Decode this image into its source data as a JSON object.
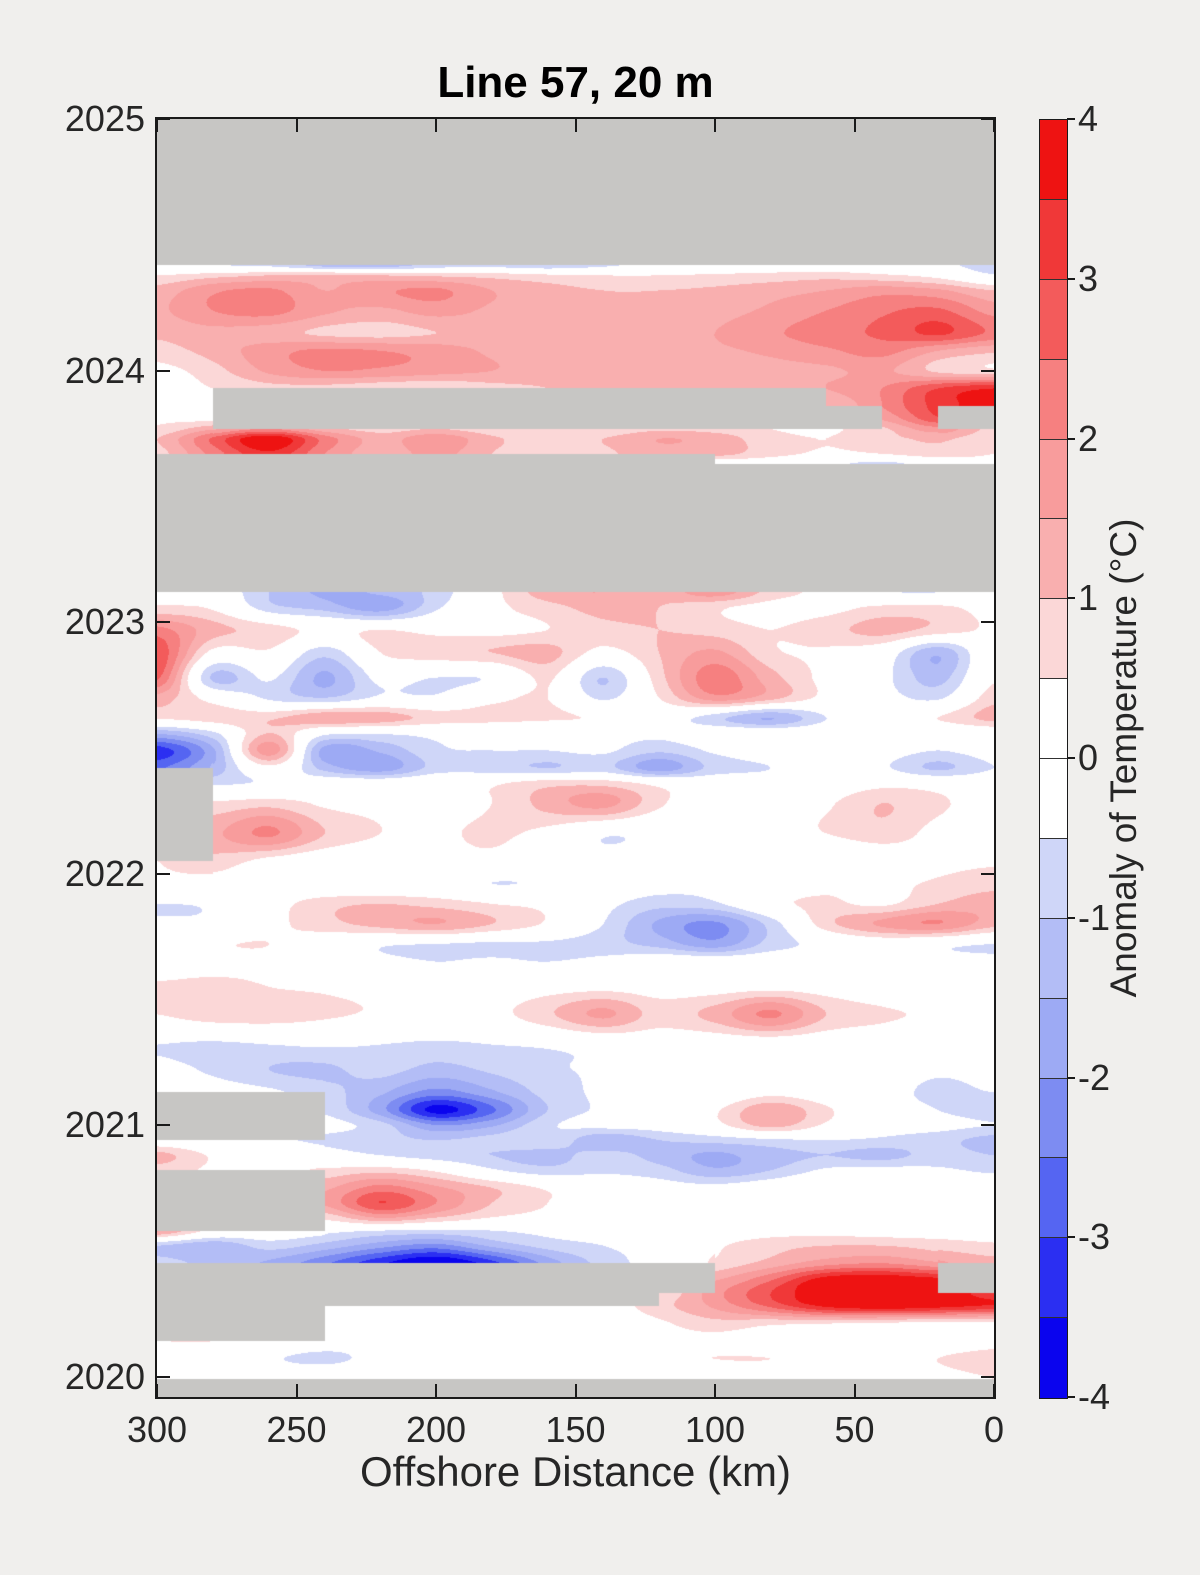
{
  "figure": {
    "background": "#F0EFED",
    "axis_color": "#1a1a1a",
    "text_color": "#262626"
  },
  "chart_data": {
    "type": "heatmap",
    "title": "Line 57, 20 m",
    "xlabel": "Offshore Distance (km)",
    "colorbar_label": "Anomaly of Temperature (°C)",
    "units": "°C",
    "legend_position": "right-colorbar",
    "grid": "off",
    "xlim": [
      300,
      0
    ],
    "ylim": [
      2019.92,
      2025.0
    ],
    "x_ticks": [
      300,
      250,
      200,
      150,
      100,
      50,
      0
    ],
    "y_ticks": [
      2025,
      2024,
      2023,
      2022,
      2021,
      2020
    ],
    "colorbar_ticks": [
      4,
      3,
      2,
      1,
      0,
      -1,
      -2,
      -3,
      -4
    ],
    "levels": {
      "min": -4,
      "max": 4,
      "step": 0.5
    },
    "colormap": [
      "#0A04EE",
      "#2B2FF2",
      "#5565F2",
      "#7D8CF2",
      "#9DAAF4",
      "#B3BDF6",
      "#CFD6F8",
      "#FFFFFF",
      "#FFFFFF",
      "#FBD7D7",
      "#F9AFAF",
      "#F89C9C",
      "#F68080",
      "#F35B5B",
      "#F03838",
      "#EE1312"
    ],
    "missing_color": "#C7C6C4",
    "missing_value": null,
    "x_km": [
      300,
      280,
      260,
      240,
      220,
      200,
      180,
      160,
      140,
      120,
      100,
      80,
      60,
      40,
      20,
      0
    ],
    "times": [
      2019.9,
      2019.965,
      2019.99,
      2020.07,
      2020.14,
      2020.21,
      2020.28,
      2020.33,
      2020.38,
      2020.45,
      2020.52,
      2020.58,
      2020.64,
      2020.69,
      2020.75,
      2020.82,
      2020.88,
      2020.94,
      2021.0,
      2021.06,
      2021.13,
      2021.22,
      2021.32,
      2021.44,
      2021.55,
      2021.65,
      2021.72,
      2021.8,
      2021.88,
      2021.96,
      2022.05,
      2022.16,
      2022.28,
      2022.36,
      2022.42,
      2022.49,
      2022.56,
      2022.62,
      2022.7,
      2022.78,
      2022.88,
      2022.97,
      2023.06,
      2023.12,
      2023.2,
      2023.36,
      2023.52,
      2023.63,
      2023.67,
      2023.73,
      2023.77,
      2023.81,
      2023.86,
      2023.93,
      2024.0,
      2024.08,
      2024.15,
      2024.24,
      2024.32,
      2024.38,
      2024.42,
      2024.46,
      2024.72,
      2025.01
    ],
    "values": [
      [
        null,
        null,
        null,
        null,
        null,
        null,
        null,
        null,
        null,
        null,
        null,
        null,
        null,
        null,
        null,
        null
      ],
      [
        null,
        null,
        null,
        null,
        null,
        null,
        null,
        null,
        null,
        null,
        null,
        null,
        null,
        null,
        null,
        null
      ],
      [
        0,
        0,
        0.1,
        0.4,
        0.2,
        0,
        0,
        0,
        0,
        0,
        0.1,
        0.2,
        0.3,
        0.3,
        0.4,
        0.5
      ],
      [
        0,
        -0.1,
        -0.4,
        -0.7,
        -0.2,
        0,
        0,
        0.2,
        0.4,
        0.4,
        0.5,
        0.5,
        0.4,
        0.3,
        0.5,
        0.6
      ],
      [
        0.5,
        0.5,
        0.3,
        0,
        -0.1,
        0,
        0,
        0,
        0.2,
        0.3,
        0.3,
        0.2,
        0.2,
        0.2,
        0.3,
        0.4
      ],
      [
        null,
        null,
        null,
        0.2,
        0,
        0,
        0,
        0,
        0.1,
        0.4,
        0.8,
        0.6,
        0.5,
        0.4,
        0.3,
        0.3
      ],
      [
        null,
        null,
        null,
        0,
        0,
        0,
        0,
        0,
        0.2,
        0.8,
        1.6,
        2.6,
        3.6,
        3.9,
        3.7,
        3.4
      ],
      [
        null,
        null,
        null,
        null,
        null,
        null,
        null,
        null,
        null,
        0.6,
        1.8,
        3.0,
        4.0,
        4.2,
        4.0,
        3.2
      ],
      [
        null,
        null,
        null,
        null,
        null,
        null,
        null,
        null,
        null,
        null,
        1.5,
        2.5,
        3.9,
        4.1,
        3.8,
        null
      ],
      [
        -0.8,
        -1.2,
        -1.6,
        -2.4,
        -3.4,
        -4.1,
        -3.2,
        -1.8,
        -0.8,
        -0.2,
        0.6,
        1.2,
        1.8,
        2.0,
        1.6,
        1.2
      ],
      [
        -1.0,
        -1.4,
        -0.8,
        -1.2,
        -1.8,
        -2.2,
        -1.4,
        -0.8,
        -0.5,
        -0.2,
        0.4,
        0.8,
        1.0,
        1.0,
        0.8,
        0.6
      ],
      [
        1.6,
        0.3,
        0,
        -0.3,
        -0.5,
        -0.6,
        -0.5,
        -0.3,
        -0.2,
        0,
        0.2,
        0.3,
        0.3,
        0.2,
        0.2,
        0.2
      ],
      [
        null,
        null,
        null,
        0.8,
        1.8,
        1.2,
        0.6,
        0.3,
        0,
        0,
        0.2,
        0.3,
        0.2,
        0,
        0,
        0
      ],
      [
        null,
        null,
        null,
        1.6,
        3.0,
        2.0,
        1.0,
        0.5,
        0.2,
        0,
        0,
        0.2,
        0,
        0,
        0,
        0
      ],
      [
        null,
        null,
        null,
        1.4,
        2.2,
        1.6,
        1.0,
        0.4,
        0,
        -0.2,
        -0.3,
        0,
        0.3,
        0,
        0,
        0
      ],
      [
        0.8,
        0.4,
        0.3,
        0.6,
        0.8,
        0.4,
        -0.4,
        -0.8,
        -0.6,
        -0.8,
        -1.4,
        -1.0,
        -0.4,
        -0.3,
        -0.4,
        -0.6
      ],
      [
        1.2,
        0.4,
        0,
        -0.2,
        -0.5,
        -0.8,
        -1.0,
        -1.2,
        -0.8,
        -1.2,
        -1.6,
        -1.2,
        -1.0,
        -1.2,
        -0.8,
        -1.0
      ],
      [
        0,
        -0.2,
        -0.4,
        -0.6,
        -0.8,
        -1.0,
        -0.8,
        -0.6,
        -1.4,
        -1.0,
        -0.8,
        -0.6,
        -0.5,
        -0.6,
        -0.8,
        -1.2
      ],
      [
        null,
        null,
        null,
        -0.3,
        -0.8,
        -2.0,
        -1.6,
        -0.6,
        -0.3,
        -0.2,
        0.3,
        1.2,
        0.4,
        -0.2,
        -0.3,
        -0.5
      ],
      [
        null,
        null,
        null,
        -0.6,
        -1.8,
        -3.7,
        -2.6,
        -1.0,
        -0.4,
        -0.2,
        0.4,
        1.4,
        0.6,
        -0.2,
        -0.5,
        -0.8
      ],
      [
        0,
        -0.2,
        -0.4,
        -0.8,
        -1.4,
        -2.2,
        -1.6,
        -0.8,
        -0.4,
        -0.3,
        -0.2,
        0.3,
        0,
        -0.3,
        -0.6,
        -0.5
      ],
      [
        -0.3,
        -0.6,
        -1.0,
        -1.1,
        -0.8,
        -1.2,
        -0.9,
        -0.6,
        -0.4,
        -0.3,
        -0.2,
        0,
        0,
        -0.2,
        -0.4,
        -0.3
      ],
      [
        -0.5,
        -0.6,
        -0.5,
        -0.4,
        -0.5,
        -0.6,
        -0.5,
        -0.4,
        -0.2,
        0,
        0,
        0,
        0,
        0,
        0,
        0
      ],
      [
        0.5,
        0.8,
        0.8,
        0.6,
        0.4,
        0.2,
        0.3,
        0.9,
        1.6,
        0.8,
        1.2,
        2.1,
        1.0,
        0.6,
        0.4,
        0.2
      ],
      [
        0.6,
        0.7,
        0.5,
        0.4,
        0.2,
        0,
        0,
        0.2,
        0.3,
        0.2,
        0.2,
        0.3,
        0.2,
        0,
        0,
        0
      ],
      [
        0,
        0.2,
        0.3,
        0,
        -0.3,
        -0.5,
        -0.4,
        -0.5,
        -0.3,
        0,
        0,
        0,
        0,
        0,
        -0.2,
        -0.3
      ],
      [
        0,
        0.4,
        0.5,
        0,
        -0.4,
        -0.5,
        -0.6,
        -0.6,
        -0.8,
        -1.2,
        -1.8,
        -0.8,
        -0.3,
        0,
        -0.3,
        -0.5
      ],
      [
        -0.4,
        -0.3,
        0.3,
        0.8,
        1.2,
        1.5,
        1.0,
        0.4,
        -0.5,
        -1.6,
        -2.1,
        -0.8,
        0.8,
        1.6,
        2.0,
        1.2
      ],
      [
        -0.5,
        -0.4,
        0.2,
        0.8,
        1.0,
        0.8,
        0.5,
        0.3,
        -0.3,
        -0.8,
        -0.6,
        0.3,
        0.6,
        0.4,
        1.0,
        1.3
      ],
      [
        0.3,
        0.2,
        0,
        -0.2,
        -0.3,
        -0.2,
        -0.5,
        -0.4,
        0,
        -0.2,
        -0.3,
        0,
        0.3,
        0.3,
        0.6,
        0.8
      ],
      [
        0.5,
        0.8,
        0.3,
        0,
        0,
        0.2,
        0.3,
        0,
        -0.2,
        0,
        0,
        -0.3,
        -0.4,
        0,
        0.3,
        0.4
      ],
      [
        null,
        1.4,
        2.1,
        1.0,
        0.5,
        0.4,
        0.6,
        0.3,
        -0.4,
        -0.3,
        0,
        0.2,
        0.5,
        0.8,
        0.3,
        0
      ],
      [
        null,
        0.6,
        0.8,
        0.4,
        0.3,
        0.2,
        0.5,
        1.2,
        1.7,
        0.6,
        0,
        0,
        0.4,
        1.0,
        0.6,
        0.2
      ],
      [
        null,
        -0.6,
        -0.4,
        0,
        0,
        0.2,
        0.4,
        0.8,
        0.8,
        0.3,
        0,
        -0.2,
        0,
        0.3,
        0.2,
        0
      ],
      [
        -2.6,
        -1.4,
        0.3,
        -1.2,
        -1.8,
        -0.8,
        -0.8,
        -1.0,
        -0.8,
        -1.8,
        -0.8,
        -0.5,
        -0.3,
        -0.4,
        -1.1,
        -0.5
      ],
      [
        -3.3,
        -1.6,
        1.8,
        -1.7,
        -1.4,
        -0.6,
        -0.5,
        -0.5,
        -0.4,
        -0.9,
        -0.4,
        -0.2,
        -0.2,
        -0.2,
        -0.5,
        -0.2
      ],
      [
        -1.4,
        -0.6,
        1.0,
        -0.3,
        -0.4,
        -0.3,
        -0.2,
        -0.2,
        -0.2,
        -0.3,
        0,
        0,
        0,
        0,
        -0.2,
        0
      ],
      [
        0.6,
        0.8,
        0.9,
        1.4,
        1.3,
        0.8,
        0.7,
        0.6,
        0.4,
        0,
        -0.8,
        -1.5,
        -0.5,
        0.2,
        0.5,
        1.2
      ],
      [
        1.3,
        0.2,
        -0.6,
        -1.0,
        -0.4,
        -0.4,
        0.3,
        0.5,
        -0.6,
        0.5,
        1.8,
        1.2,
        0.3,
        -0.2,
        -0.6,
        0.8
      ],
      [
        2.6,
        -1.1,
        -0.4,
        -1.6,
        -0.3,
        -0.5,
        -0.4,
        0.6,
        -1.0,
        0.8,
        2.3,
        1.2,
        0.3,
        -0.3,
        -1.2,
        0.4
      ],
      [
        2.9,
        0.3,
        0.4,
        -0.8,
        0.5,
        0.8,
        1.0,
        1.2,
        0.3,
        1.0,
        1.6,
        0.6,
        0.4,
        0,
        -1.4,
        0.3
      ],
      [
        2.2,
        1.2,
        0.8,
        0.3,
        0.5,
        0.3,
        0.3,
        0.5,
        0.8,
        1.0,
        0.8,
        0.5,
        0.8,
        1.2,
        0.8,
        0.4
      ],
      [
        0.6,
        0.4,
        -0.8,
        -1.2,
        -1.8,
        -0.6,
        0.3,
        0.8,
        1.2,
        1.0,
        0.6,
        0.3,
        0.3,
        0.6,
        0.6,
        0.3
      ],
      [
        0.3,
        0,
        -1.0,
        -1.6,
        -1.4,
        -0.8,
        0.3,
        1.3,
        1.5,
        1.2,
        1.8,
        0.8,
        0.3,
        -0.4,
        -0.5,
        0.3
      ],
      [
        null,
        null,
        null,
        null,
        null,
        null,
        null,
        null,
        null,
        null,
        null,
        null,
        null,
        null,
        null,
        null
      ],
      [
        null,
        null,
        null,
        null,
        null,
        null,
        null,
        null,
        null,
        null,
        null,
        null,
        null,
        null,
        null,
        null
      ],
      [
        null,
        null,
        null,
        null,
        null,
        null,
        null,
        null,
        null,
        null,
        null,
        null,
        null,
        null,
        null,
        null
      ],
      [
        null,
        null,
        null,
        null,
        null,
        null,
        null,
        null,
        null,
        null,
        0,
        0,
        -0.3,
        -0.7,
        -0.1,
        0.3
      ],
      [
        0.8,
        2.2,
        3.4,
        2.0,
        1.2,
        1.7,
        1.0,
        0.8,
        0.9,
        1.3,
        1.2,
        0.7,
        0.4,
        0.5,
        0.8,
        0.5
      ],
      [
        1.0,
        2.6,
        4.0,
        2.3,
        1.3,
        1.9,
        1.1,
        0.8,
        1.0,
        1.5,
        1.3,
        0.7,
        0.5,
        0.8,
        1.1,
        0.6
      ],
      [
        0.6,
        1.4,
        2.0,
        1.2,
        0.8,
        1.0,
        0.7,
        0.5,
        0.6,
        0.9,
        0.8,
        0.5,
        0.4,
        0.9,
        1.8,
        0.8
      ],
      [
        0.4,
        0.3,
        null,
        null,
        null,
        null,
        null,
        null,
        null,
        null,
        null,
        null,
        null,
        1.6,
        2.9,
        null
      ],
      [
        0.4,
        0.2,
        null,
        null,
        null,
        null,
        null,
        null,
        null,
        null,
        null,
        null,
        1.0,
        2.0,
        3.2,
        3.8
      ],
      [
        0.2,
        0.5,
        0.8,
        0.8,
        0.6,
        0.5,
        0.8,
        1.0,
        1.2,
        1.1,
        1.0,
        1.2,
        1.5,
        2.0,
        3.0,
        3.5
      ],
      [
        0.3,
        0.8,
        1.6,
        2.0,
        1.9,
        1.7,
        1.5,
        1.3,
        1.2,
        1.1,
        1.2,
        1.3,
        1.4,
        1.6,
        0.9,
        0.6
      ],
      [
        0.8,
        1.2,
        1.8,
        2.1,
        2.0,
        1.8,
        1.4,
        1.2,
        1.1,
        1.2,
        1.4,
        1.6,
        1.9,
        2.2,
        1.5,
        1.1
      ],
      [
        1.1,
        1.3,
        1.2,
        0.9,
        0.8,
        1.0,
        1.1,
        1.2,
        1.1,
        1.2,
        1.5,
        1.9,
        2.3,
        2.6,
        3.1,
        2.4
      ],
      [
        1.4,
        2.0,
        2.2,
        1.6,
        1.4,
        1.7,
        1.4,
        1.2,
        1.1,
        1.1,
        1.3,
        1.6,
        2.0,
        2.4,
        2.6,
        1.8
      ],
      [
        1.2,
        1.9,
        2.1,
        1.5,
        1.9,
        2.1,
        1.5,
        1.2,
        1.0,
        1.0,
        1.1,
        1.3,
        1.5,
        1.8,
        1.6,
        1.0
      ],
      [
        0.5,
        0.8,
        1.0,
        1.1,
        1.0,
        0.9,
        0.8,
        0.6,
        0.5,
        0.5,
        0.6,
        0.7,
        0.8,
        0.6,
        0.3,
        -0.4
      ],
      [
        -0.4,
        -0.5,
        -0.6,
        -1.2,
        -1.3,
        -0.8,
        -0.7,
        -0.9,
        -0.6,
        -0.3,
        -0.2,
        0,
        0,
        0,
        -0.3,
        -0.8
      ],
      [
        null,
        null,
        null,
        null,
        null,
        null,
        null,
        null,
        null,
        null,
        null,
        null,
        null,
        null,
        null,
        null
      ],
      [
        null,
        null,
        null,
        null,
        null,
        null,
        null,
        null,
        null,
        null,
        null,
        null,
        null,
        null,
        null,
        null
      ],
      [
        null,
        null,
        null,
        null,
        null,
        null,
        null,
        null,
        null,
        null,
        null,
        null,
        null,
        null,
        null,
        null
      ]
    ]
  }
}
